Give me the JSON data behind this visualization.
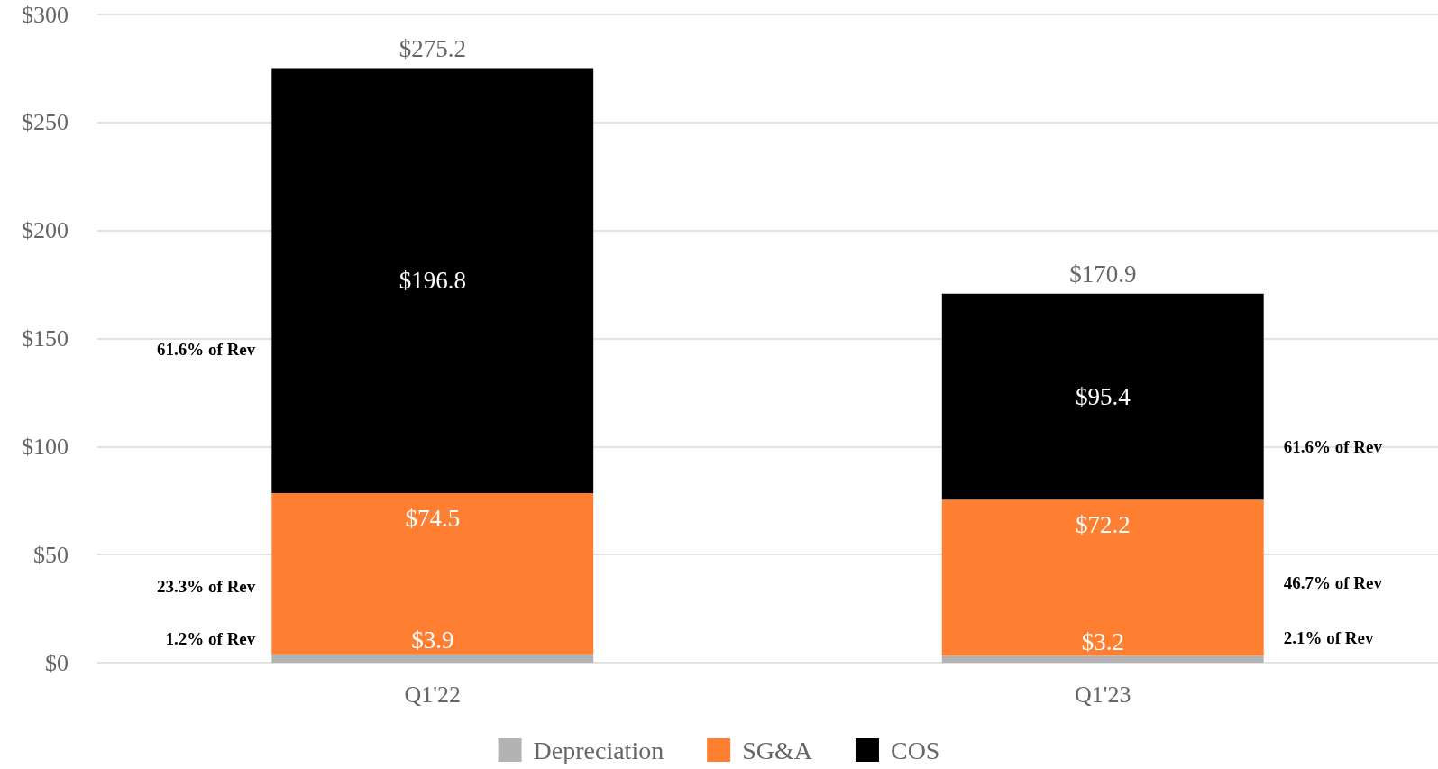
{
  "chart_data": {
    "type": "bar",
    "stacked": true,
    "categories": [
      "Q1'22",
      "Q1'23"
    ],
    "series": [
      {
        "name": "Depreciation",
        "color": "#b3b3b3",
        "values": [
          3.9,
          3.2
        ],
        "value_labels": [
          "$3.9",
          "$3.2"
        ]
      },
      {
        "name": "SG&A",
        "color": "#fe7f31",
        "values": [
          74.5,
          72.2
        ],
        "value_labels": [
          "$74.5",
          "$72.2"
        ]
      },
      {
        "name": "COS",
        "color": "#000000",
        "values": [
          196.8,
          95.4
        ],
        "value_labels": [
          "$196.8",
          "$95.4"
        ]
      }
    ],
    "totals": [
      "$275.2",
      "$170.9"
    ],
    "ylim": [
      0,
      300
    ],
    "yticks": [
      {
        "value": 0,
        "label": "$0"
      },
      {
        "value": 50,
        "label": "$50"
      },
      {
        "value": 100,
        "label": "$100"
      },
      {
        "value": 150,
        "label": "$150"
      },
      {
        "value": 200,
        "label": "$200"
      },
      {
        "value": 250,
        "label": "$250"
      },
      {
        "value": 300,
        "label": "$300"
      }
    ],
    "grid": "y",
    "legend": "bottom",
    "annotations": [
      "61.6% of Rev",
      "23.3% of Rev",
      "1.2% of Rev",
      "61.6% of Rev",
      "46.7% of Rev",
      "2.1% of Rev"
    ]
  }
}
